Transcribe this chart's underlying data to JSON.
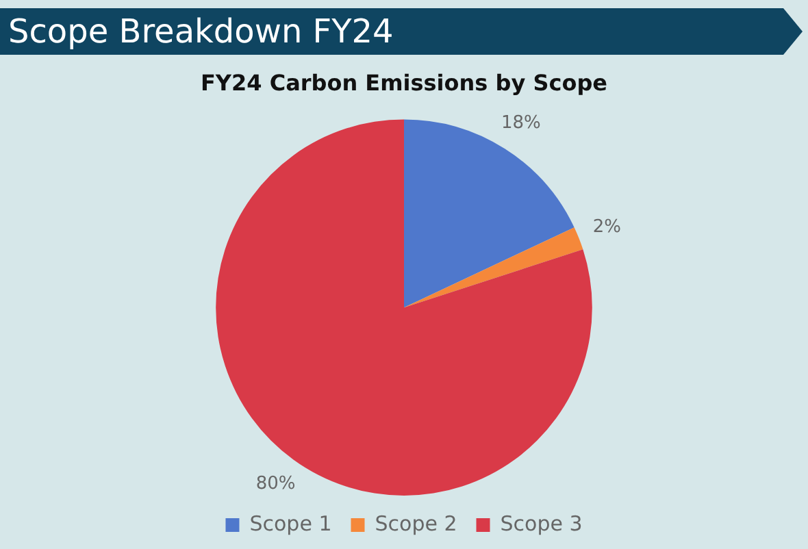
{
  "chart_data": {
    "type": "pie",
    "title": "Scope Breakdown FY24",
    "subtitle": "FY24 Carbon Emissions by Scope",
    "categories": [
      "Scope 1",
      "Scope 2",
      "Scope 3"
    ],
    "values": [
      18,
      2,
      80
    ],
    "colors": [
      "#4f78cc",
      "#f5883a",
      "#d93a48"
    ],
    "value_labels": [
      "18%",
      "2%",
      "80%"
    ],
    "legend": "bottom"
  }
}
